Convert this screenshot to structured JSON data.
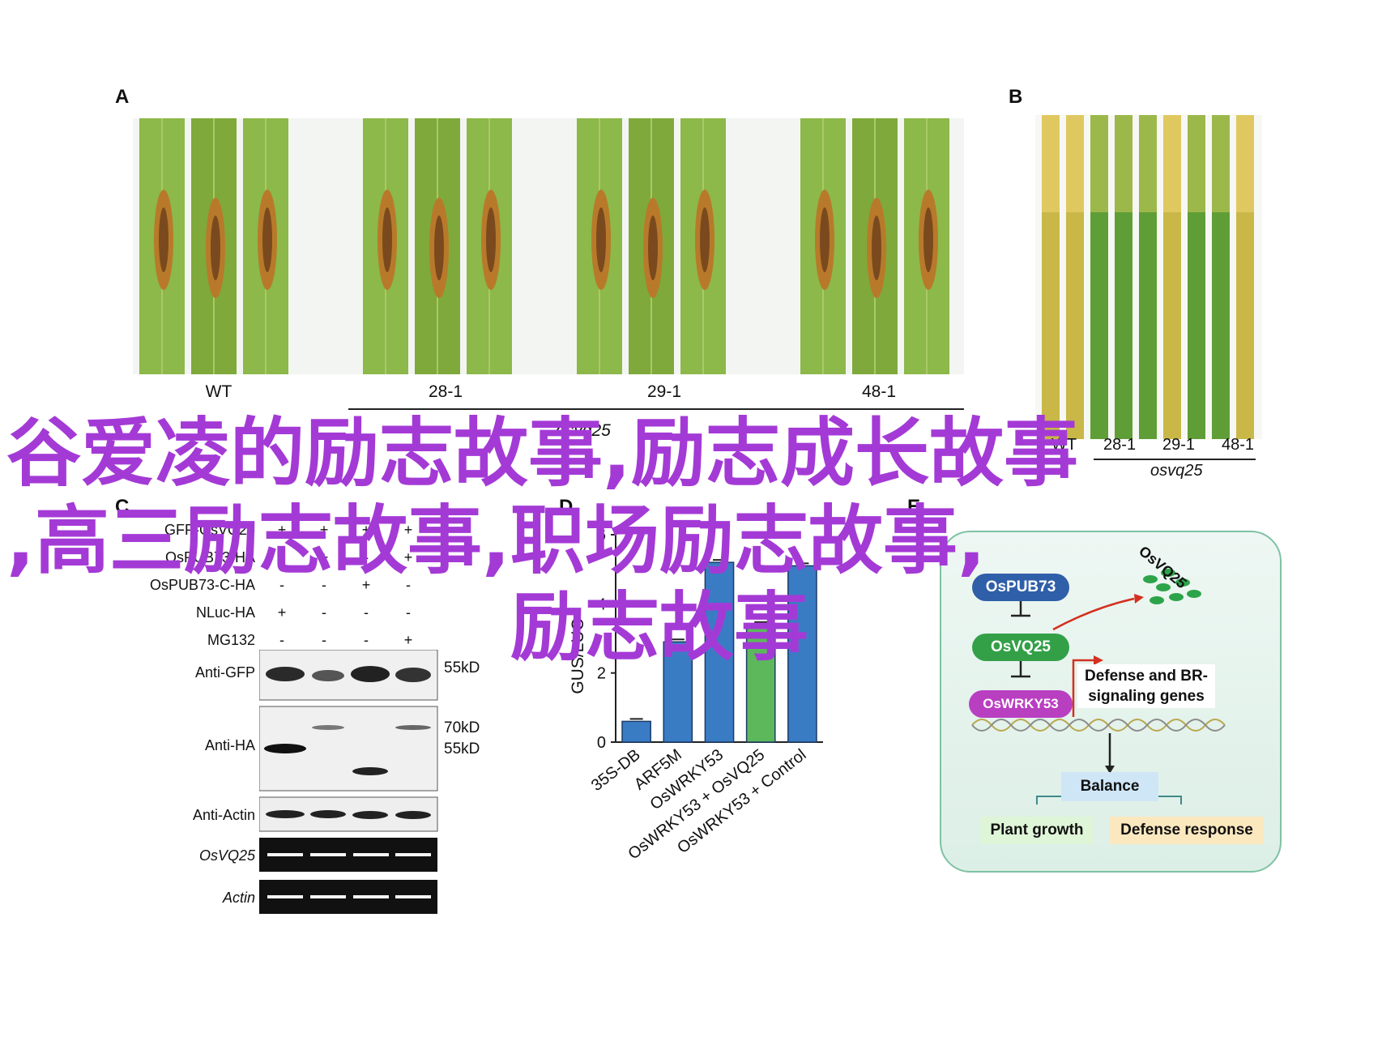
{
  "panel_a": {
    "letter": "A",
    "leaf_labels": [
      "WT",
      "28-1",
      "29-1",
      "48-1"
    ],
    "group_label": "osvq25"
  },
  "panel_b": {
    "letter": "B",
    "leaf_labels": [
      "WT",
      "28-1",
      "29-1",
      "48-1"
    ],
    "group_label": "osvq25"
  },
  "panel_c": {
    "letter": "C",
    "row_labels": [
      "GFP-OsVQ25",
      "OsPUB73-HA",
      "OsPUB73-C-HA",
      "NLuc-HA",
      "MG132"
    ],
    "signs": [
      [
        "+",
        "+",
        "+",
        "+"
      ],
      [
        "-",
        "+",
        "-",
        "+"
      ],
      [
        "-",
        "-",
        "+",
        "-"
      ],
      [
        "+",
        "-",
        "-",
        "-"
      ],
      [
        "-",
        "-",
        "-",
        "+"
      ]
    ],
    "blot_labels": [
      "Anti-GFP",
      "Anti-HA",
      "Anti-Actin",
      "OsVQ25",
      "Actin"
    ],
    "markers": [
      "55kD",
      "70kD",
      "55kD"
    ]
  },
  "panel_d": {
    "letter": "D",
    "chart_data": {
      "type": "bar",
      "ylabel": "GUS/LUC",
      "ylim": [
        0,
        6
      ],
      "yticks": [
        "0",
        "2",
        "4",
        "6"
      ],
      "categories": [
        "35S-DB",
        "ARF5M",
        "OsWRKY53",
        "OsWRKY53 + OsVQ25",
        "OsWRKY53 + Control"
      ],
      "values": [
        0.6,
        2.9,
        5.2,
        3.4,
        5.1
      ],
      "colors": [
        "#3a7cc4",
        "#3a7cc4",
        "#3a7cc4",
        "#5db85c",
        "#3a7cc4"
      ]
    }
  },
  "panel_e": {
    "letter": "E",
    "nodes": {
      "pub73": "OsPUB73",
      "vq25": "OsVQ25",
      "wrky53": "OsWRKY53",
      "vq25_degraded": "OsVQ25"
    },
    "defense_box": "Defense and BR-\nsignaling genes",
    "balance": "Balance",
    "plant_growth": "Plant growth",
    "defense_response": "Defense response",
    "colors": {
      "pub73": "#2f5fa8",
      "vq25": "#33a048",
      "wrky53": "#b93fc1",
      "panel_bg": "#e6f3ee",
      "panel_border": "#7fc2a4"
    }
  },
  "overlay": {
    "line1": "谷爱凌的励志故事,励志成长故事",
    "line2": ",高三励志故事,职场励志故事,",
    "line3": "励志故事"
  }
}
